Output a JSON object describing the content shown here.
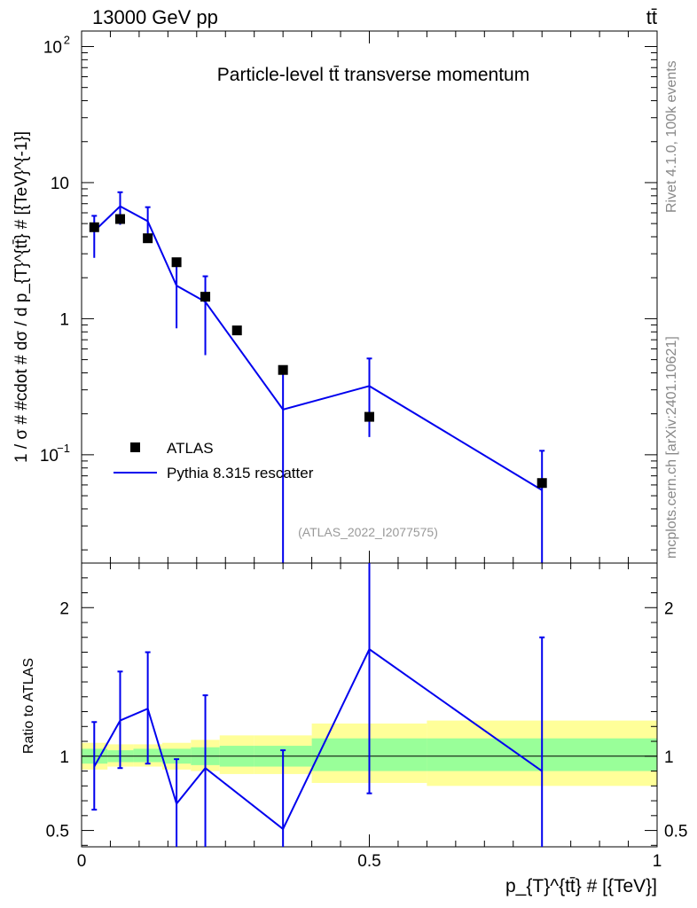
{
  "header": {
    "energy_label": "13000 GeV pp",
    "process_label": "tt̄"
  },
  "side_labels": {
    "rivet": "Rivet 4.1.0,  100k events",
    "source": "mcplots.cern.ch [arXiv:2401.10621]"
  },
  "colors": {
    "data": "#000000",
    "mc": "#0000ee",
    "band_outer": "#ffff99",
    "band_inner": "#99ff99"
  },
  "chart_data": [
    {
      "type": "scatter",
      "title": "Particle-level tt̄ transverse momentum",
      "analysis_id": "(ATLAS_2022_I2077575)",
      "xlabel": "p_{T}^{tt̄} # [{TeV}]",
      "ylabel": "1 / σ # #cdot # dσ / d p_{T}^{tt̄} # [{TeV}^{-1}]",
      "yscale": "log",
      "xlim": [
        0,
        1
      ],
      "ylim": [
        0.016,
        130
      ],
      "yticks": [
        {
          "value": 0.1,
          "base": "10",
          "exp": "−1"
        },
        {
          "value": 1,
          "base": "1",
          "exp": ""
        },
        {
          "value": 10,
          "base": "10",
          "exp": ""
        },
        {
          "value": 100,
          "base": "10",
          "exp": "2"
        }
      ],
      "legend": {
        "position": "bottom-left",
        "entries": [
          "ATLAS",
          "Pythia 8.315 rescatter"
        ]
      },
      "series": [
        {
          "name": "ATLAS",
          "style": "markers",
          "points": [
            {
              "x": 0.022,
              "y": 4.7
            },
            {
              "x": 0.067,
              "y": 5.4
            },
            {
              "x": 0.115,
              "y": 3.9
            },
            {
              "x": 0.165,
              "y": 2.6
            },
            {
              "x": 0.215,
              "y": 1.45
            },
            {
              "x": 0.27,
              "y": 0.82
            },
            {
              "x": 0.35,
              "y": 0.42
            },
            {
              "x": 0.5,
              "y": 0.19
            },
            {
              "x": 0.8,
              "y": 0.062
            }
          ]
        },
        {
          "name": "Pythia 8.315 rescatter",
          "style": "line",
          "points": [
            {
              "x": 0.022,
              "y": 4.4,
              "ylo": 2.8,
              "yhi": 5.7
            },
            {
              "x": 0.067,
              "y": 6.7,
              "ylo": 4.9,
              "yhi": 8.5
            },
            {
              "x": 0.115,
              "y": 5.2,
              "ylo": 3.7,
              "yhi": 6.6
            },
            {
              "x": 0.165,
              "y": 1.75,
              "ylo": 0.85,
              "yhi": 2.6
            },
            {
              "x": 0.215,
              "y": 1.33,
              "ylo": 0.54,
              "yhi": 2.05
            },
            {
              "x": 0.35,
              "y": 0.215,
              "ylo": 0.005,
              "yhi": 0.44
            },
            {
              "x": 0.5,
              "y": 0.32,
              "ylo": 0.135,
              "yhi": 0.51
            },
            {
              "x": 0.8,
              "y": 0.055,
              "ylo": 0.005,
              "yhi": 0.107
            }
          ]
        }
      ]
    },
    {
      "type": "line",
      "ylabel": "Ratio to ATLAS",
      "xlabel": "p_{T}^{tt̄} # [{TeV}]",
      "xlim": [
        0,
        1
      ],
      "ylim": [
        0.39,
        2.3
      ],
      "yticks": [
        0.5,
        1,
        2
      ],
      "xticks": [
        {
          "value": 0,
          "label": "0"
        },
        {
          "value": 0.5,
          "label": "0.5"
        },
        {
          "value": 1,
          "label": "1"
        }
      ],
      "reference": 1,
      "uncertainty_bands": [
        {
          "x0": 0,
          "x1": 0.045,
          "inner": [
            0.95,
            1.05
          ],
          "outer": [
            0.91,
            1.09
          ]
        },
        {
          "x0": 0.045,
          "x1": 0.09,
          "inner": [
            0.96,
            1.04
          ],
          "outer": [
            0.93,
            1.08
          ]
        },
        {
          "x0": 0.09,
          "x1": 0.14,
          "inner": [
            0.96,
            1.05
          ],
          "outer": [
            0.93,
            1.08
          ]
        },
        {
          "x0": 0.14,
          "x1": 0.19,
          "inner": [
            0.95,
            1.05
          ],
          "outer": [
            0.91,
            1.09
          ]
        },
        {
          "x0": 0.19,
          "x1": 0.24,
          "inner": [
            0.94,
            1.06
          ],
          "outer": [
            0.9,
            1.11
          ]
        },
        {
          "x0": 0.24,
          "x1": 0.3,
          "inner": [
            0.93,
            1.07
          ],
          "outer": [
            0.88,
            1.14
          ]
        },
        {
          "x0": 0.3,
          "x1": 0.4,
          "inner": [
            0.93,
            1.07
          ],
          "outer": [
            0.88,
            1.14
          ]
        },
        {
          "x0": 0.4,
          "x1": 0.6,
          "inner": [
            0.9,
            1.12
          ],
          "outer": [
            0.82,
            1.22
          ]
        },
        {
          "x0": 0.6,
          "x1": 1.0,
          "inner": [
            0.9,
            1.12
          ],
          "outer": [
            0.8,
            1.24
          ]
        }
      ],
      "series": [
        {
          "name": "Pythia 8.315 rescatter / ATLAS",
          "points": [
            {
              "x": 0.022,
              "y": 0.93,
              "ylo": 0.64,
              "yhi": 1.23
            },
            {
              "x": 0.067,
              "y": 1.24,
              "ylo": 0.92,
              "yhi": 1.57
            },
            {
              "x": 0.115,
              "y": 1.32,
              "ylo": 0.95,
              "yhi": 1.7
            },
            {
              "x": 0.165,
              "y": 0.68,
              "ylo": 0.3,
              "yhi": 0.98
            },
            {
              "x": 0.215,
              "y": 0.92,
              "ylo": 0.3,
              "yhi": 1.41
            },
            {
              "x": 0.35,
              "y": 0.51,
              "ylo": 0.3,
              "yhi": 1.04
            },
            {
              "x": 0.5,
              "y": 1.72,
              "ylo": 0.75,
              "yhi": 2.6
            },
            {
              "x": 0.8,
              "y": 0.9,
              "ylo": 0.3,
              "yhi": 1.8
            }
          ]
        }
      ]
    }
  ]
}
